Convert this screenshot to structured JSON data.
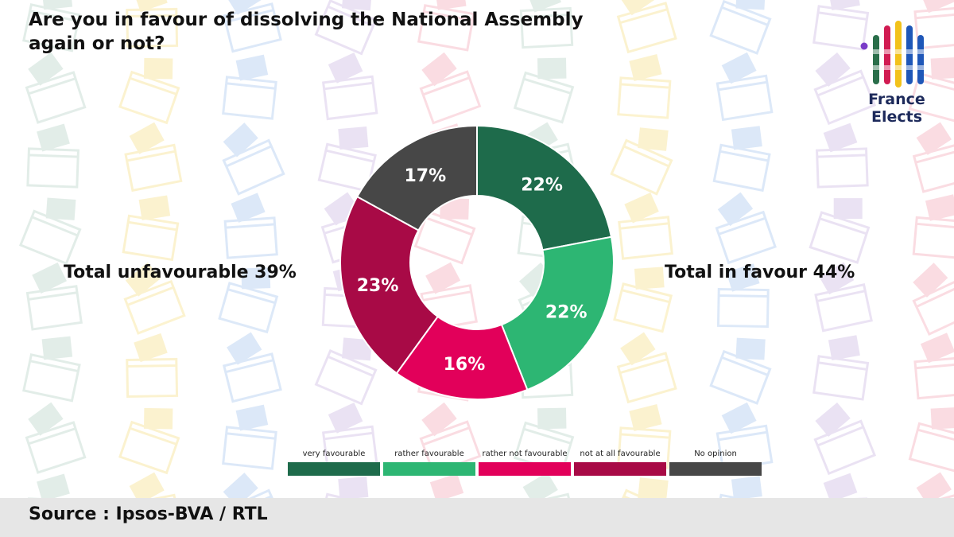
{
  "title": "Are you in favour of dissolving the National Assembly again or not?",
  "totals": {
    "unfavourable": "Total unfavourable 39%",
    "in_favour": "Total in favour 44%"
  },
  "source": "Source : Ipsos-BVA / RTL",
  "logo": {
    "line1": "France",
    "line2": "Elects"
  },
  "chart_data": {
    "type": "pie",
    "title": "Are you in favour of dissolving the National Assembly again or not?",
    "categories": [
      "very favourable",
      "rather favourable",
      "rather not favourable",
      "not at all favourable",
      "No opinion"
    ],
    "values": [
      22,
      22,
      16,
      23,
      17
    ],
    "labels": [
      "22%",
      "22%",
      "16%",
      "23%",
      "17%"
    ],
    "colors": [
      "#1e6b4b",
      "#2db673",
      "#e2005a",
      "#a80a46",
      "#474747"
    ],
    "legend_position": "bottom"
  }
}
